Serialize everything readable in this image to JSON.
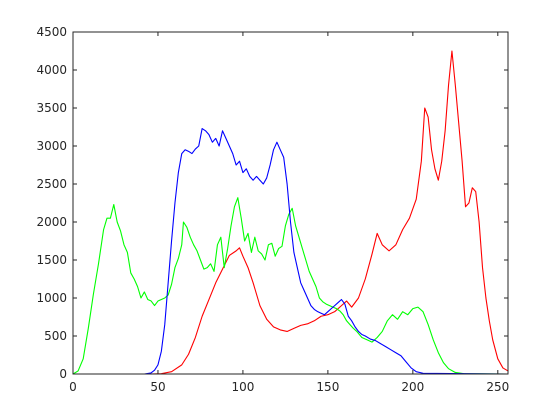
{
  "chart_data": {
    "type": "line",
    "title": "",
    "xlabel": "",
    "ylabel": "",
    "xlim": [
      0,
      256
    ],
    "ylim": [
      0,
      4500
    ],
    "grid": false,
    "x_ticks": [
      0,
      50,
      100,
      150,
      200,
      250
    ],
    "x_tick_labels": [
      "0",
      "50",
      "100",
      "150",
      "200",
      "250"
    ],
    "y_ticks": [
      0,
      500,
      1000,
      1500,
      2000,
      2500,
      3000,
      3500,
      4000,
      4500
    ],
    "y_tick_labels": [
      "0",
      "500",
      "1000",
      "1500",
      "2000",
      "2500",
      "3000",
      "3500",
      "4000",
      "4500"
    ],
    "series": [
      {
        "color": "#ff0000",
        "points": [
          [
            0,
            0
          ],
          [
            45,
            0
          ],
          [
            52,
            5
          ],
          [
            58,
            30
          ],
          [
            64,
            120
          ],
          [
            68,
            260
          ],
          [
            72,
            480
          ],
          [
            76,
            760
          ],
          [
            80,
            980
          ],
          [
            84,
            1200
          ],
          [
            88,
            1380
          ],
          [
            92,
            1560
          ],
          [
            96,
            1620
          ],
          [
            98,
            1660
          ],
          [
            100,
            1550
          ],
          [
            103,
            1400
          ],
          [
            106,
            1200
          ],
          [
            110,
            900
          ],
          [
            114,
            720
          ],
          [
            118,
            620
          ],
          [
            122,
            580
          ],
          [
            126,
            560
          ],
          [
            130,
            600
          ],
          [
            134,
            640
          ],
          [
            138,
            660
          ],
          [
            142,
            700
          ],
          [
            146,
            760
          ],
          [
            150,
            780
          ],
          [
            154,
            820
          ],
          [
            158,
            900
          ],
          [
            161,
            960
          ],
          [
            164,
            880
          ],
          [
            168,
            1000
          ],
          [
            172,
            1250
          ],
          [
            176,
            1580
          ],
          [
            179,
            1850
          ],
          [
            182,
            1700
          ],
          [
            186,
            1620
          ],
          [
            190,
            1700
          ],
          [
            194,
            1900
          ],
          [
            198,
            2050
          ],
          [
            202,
            2300
          ],
          [
            205,
            2800
          ],
          [
            207,
            3500
          ],
          [
            209,
            3380
          ],
          [
            211,
            2950
          ],
          [
            213,
            2700
          ],
          [
            215,
            2550
          ],
          [
            217,
            2800
          ],
          [
            219,
            3200
          ],
          [
            221,
            3800
          ],
          [
            223,
            4250
          ],
          [
            225,
            3800
          ],
          [
            227,
            3300
          ],
          [
            229,
            2800
          ],
          [
            231,
            2200
          ],
          [
            233,
            2250
          ],
          [
            235,
            2450
          ],
          [
            237,
            2400
          ],
          [
            239,
            2000
          ],
          [
            241,
            1400
          ],
          [
            243,
            1000
          ],
          [
            245,
            700
          ],
          [
            247,
            450
          ],
          [
            250,
            200
          ],
          [
            253,
            80
          ],
          [
            256,
            40
          ]
        ]
      },
      {
        "color": "#00ff00",
        "points": [
          [
            0,
            0
          ],
          [
            3,
            40
          ],
          [
            6,
            200
          ],
          [
            9,
            600
          ],
          [
            12,
            1050
          ],
          [
            15,
            1450
          ],
          [
            18,
            1900
          ],
          [
            20,
            2050
          ],
          [
            22,
            2050
          ],
          [
            24,
            2230
          ],
          [
            26,
            2000
          ],
          [
            28,
            1880
          ],
          [
            30,
            1700
          ],
          [
            32,
            1600
          ],
          [
            34,
            1330
          ],
          [
            36,
            1250
          ],
          [
            38,
            1150
          ],
          [
            40,
            1000
          ],
          [
            42,
            1080
          ],
          [
            44,
            980
          ],
          [
            46,
            960
          ],
          [
            48,
            900
          ],
          [
            50,
            960
          ],
          [
            52,
            980
          ],
          [
            54,
            1000
          ],
          [
            56,
            1040
          ],
          [
            58,
            1180
          ],
          [
            60,
            1400
          ],
          [
            62,
            1520
          ],
          [
            64,
            1700
          ],
          [
            65,
            2000
          ],
          [
            67,
            1930
          ],
          [
            69,
            1800
          ],
          [
            71,
            1700
          ],
          [
            73,
            1620
          ],
          [
            75,
            1500
          ],
          [
            77,
            1380
          ],
          [
            79,
            1400
          ],
          [
            81,
            1450
          ],
          [
            83,
            1350
          ],
          [
            85,
            1700
          ],
          [
            87,
            1800
          ],
          [
            89,
            1400
          ],
          [
            91,
            1650
          ],
          [
            93,
            1950
          ],
          [
            95,
            2200
          ],
          [
            97,
            2320
          ],
          [
            99,
            2050
          ],
          [
            101,
            1750
          ],
          [
            103,
            1850
          ],
          [
            105,
            1600
          ],
          [
            107,
            1800
          ],
          [
            109,
            1620
          ],
          [
            111,
            1580
          ],
          [
            113,
            1500
          ],
          [
            115,
            1700
          ],
          [
            117,
            1720
          ],
          [
            119,
            1550
          ],
          [
            121,
            1650
          ],
          [
            123,
            1680
          ],
          [
            125,
            1950
          ],
          [
            127,
            2100
          ],
          [
            129,
            2180
          ],
          [
            131,
            1950
          ],
          [
            133,
            1800
          ],
          [
            135,
            1650
          ],
          [
            137,
            1500
          ],
          [
            139,
            1350
          ],
          [
            141,
            1250
          ],
          [
            143,
            1150
          ],
          [
            145,
            1000
          ],
          [
            147,
            950
          ],
          [
            149,
            920
          ],
          [
            151,
            900
          ],
          [
            153,
            880
          ],
          [
            155,
            860
          ],
          [
            157,
            830
          ],
          [
            159,
            780
          ],
          [
            161,
            700
          ],
          [
            163,
            650
          ],
          [
            165,
            600
          ],
          [
            167,
            560
          ],
          [
            170,
            480
          ],
          [
            173,
            450
          ],
          [
            176,
            420
          ],
          [
            179,
            480
          ],
          [
            182,
            560
          ],
          [
            185,
            700
          ],
          [
            188,
            780
          ],
          [
            191,
            720
          ],
          [
            194,
            820
          ],
          [
            197,
            780
          ],
          [
            200,
            860
          ],
          [
            203,
            880
          ],
          [
            206,
            820
          ],
          [
            209,
            650
          ],
          [
            212,
            450
          ],
          [
            215,
            280
          ],
          [
            218,
            150
          ],
          [
            221,
            70
          ],
          [
            225,
            20
          ],
          [
            230,
            5
          ],
          [
            256,
            0
          ]
        ]
      },
      {
        "color": "#0000ff",
        "points": [
          [
            0,
            0
          ],
          [
            42,
            0
          ],
          [
            46,
            15
          ],
          [
            48,
            50
          ],
          [
            50,
            120
          ],
          [
            52,
            300
          ],
          [
            54,
            650
          ],
          [
            56,
            1200
          ],
          [
            58,
            1750
          ],
          [
            60,
            2250
          ],
          [
            62,
            2650
          ],
          [
            64,
            2900
          ],
          [
            66,
            2950
          ],
          [
            68,
            2930
          ],
          [
            70,
            2900
          ],
          [
            72,
            2960
          ],
          [
            74,
            3000
          ],
          [
            76,
            3230
          ],
          [
            78,
            3200
          ],
          [
            80,
            3150
          ],
          [
            82,
            3050
          ],
          [
            84,
            3100
          ],
          [
            86,
            3000
          ],
          [
            88,
            3200
          ],
          [
            90,
            3100
          ],
          [
            92,
            3000
          ],
          [
            94,
            2900
          ],
          [
            96,
            2750
          ],
          [
            98,
            2800
          ],
          [
            100,
            2650
          ],
          [
            102,
            2700
          ],
          [
            104,
            2600
          ],
          [
            106,
            2550
          ],
          [
            108,
            2600
          ],
          [
            110,
            2550
          ],
          [
            112,
            2500
          ],
          [
            114,
            2580
          ],
          [
            116,
            2750
          ],
          [
            118,
            2950
          ],
          [
            120,
            3050
          ],
          [
            122,
            2950
          ],
          [
            124,
            2850
          ],
          [
            126,
            2500
          ],
          [
            128,
            2000
          ],
          [
            130,
            1600
          ],
          [
            132,
            1400
          ],
          [
            134,
            1200
          ],
          [
            136,
            1100
          ],
          [
            138,
            1000
          ],
          [
            140,
            900
          ],
          [
            142,
            850
          ],
          [
            144,
            820
          ],
          [
            146,
            800
          ],
          [
            148,
            780
          ],
          [
            150,
            820
          ],
          [
            152,
            860
          ],
          [
            154,
            900
          ],
          [
            156,
            940
          ],
          [
            158,
            980
          ],
          [
            160,
            920
          ],
          [
            162,
            760
          ],
          [
            164,
            700
          ],
          [
            166,
            620
          ],
          [
            168,
            560
          ],
          [
            170,
            520
          ],
          [
            172,
            500
          ],
          [
            175,
            460
          ],
          [
            178,
            440
          ],
          [
            181,
            400
          ],
          [
            184,
            360
          ],
          [
            187,
            320
          ],
          [
            190,
            280
          ],
          [
            193,
            240
          ],
          [
            196,
            160
          ],
          [
            199,
            80
          ],
          [
            202,
            30
          ],
          [
            206,
            10
          ],
          [
            256,
            0
          ]
        ]
      }
    ]
  }
}
